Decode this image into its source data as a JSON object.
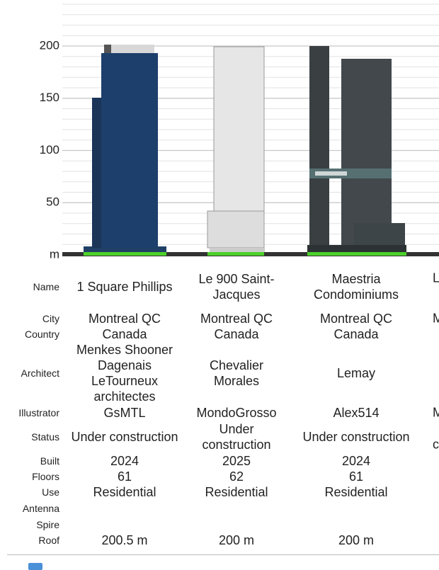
{
  "scale": {
    "ticks": [
      200,
      150,
      100,
      50
    ],
    "unit": "m"
  },
  "row_labels": [
    "Name",
    "City",
    "Country",
    "Architect",
    "Illustrator",
    "Status",
    "Built",
    "Floors",
    "Use",
    "Antenna",
    "Spire",
    "Roof"
  ],
  "buildings": [
    {
      "name": "1 Square Phillips",
      "city": "Montreal QC",
      "country": "Canada",
      "architect": "Menkes Shooner Dagenais LeTourneux architectes",
      "illustrator": "GsMTL",
      "status": "Under construction",
      "built": 2024,
      "floors": 61,
      "use": "Residential",
      "roof": "200.5 m"
    },
    {
      "name": "Le 900 Saint-Jacques",
      "city": "Montreal QC",
      "country": "Canada",
      "architect": "Chevalier Morales",
      "illustrator": "MondoGrosso",
      "status": "Under construction",
      "built": 2025,
      "floors": 62,
      "use": "Residential",
      "roof": "200 m"
    },
    {
      "name": "Maestria Condominiums",
      "city": "Montreal QC",
      "country": "Canada",
      "architect": "Lemay",
      "illustrator": "Alex514",
      "status": "Under construction",
      "built": 2024,
      "floors": 61,
      "use": "Residential",
      "roof": "200 m"
    }
  ],
  "partial_column": {
    "name": "L",
    "city": "M",
    "illustrator": "M",
    "status": "c"
  }
}
